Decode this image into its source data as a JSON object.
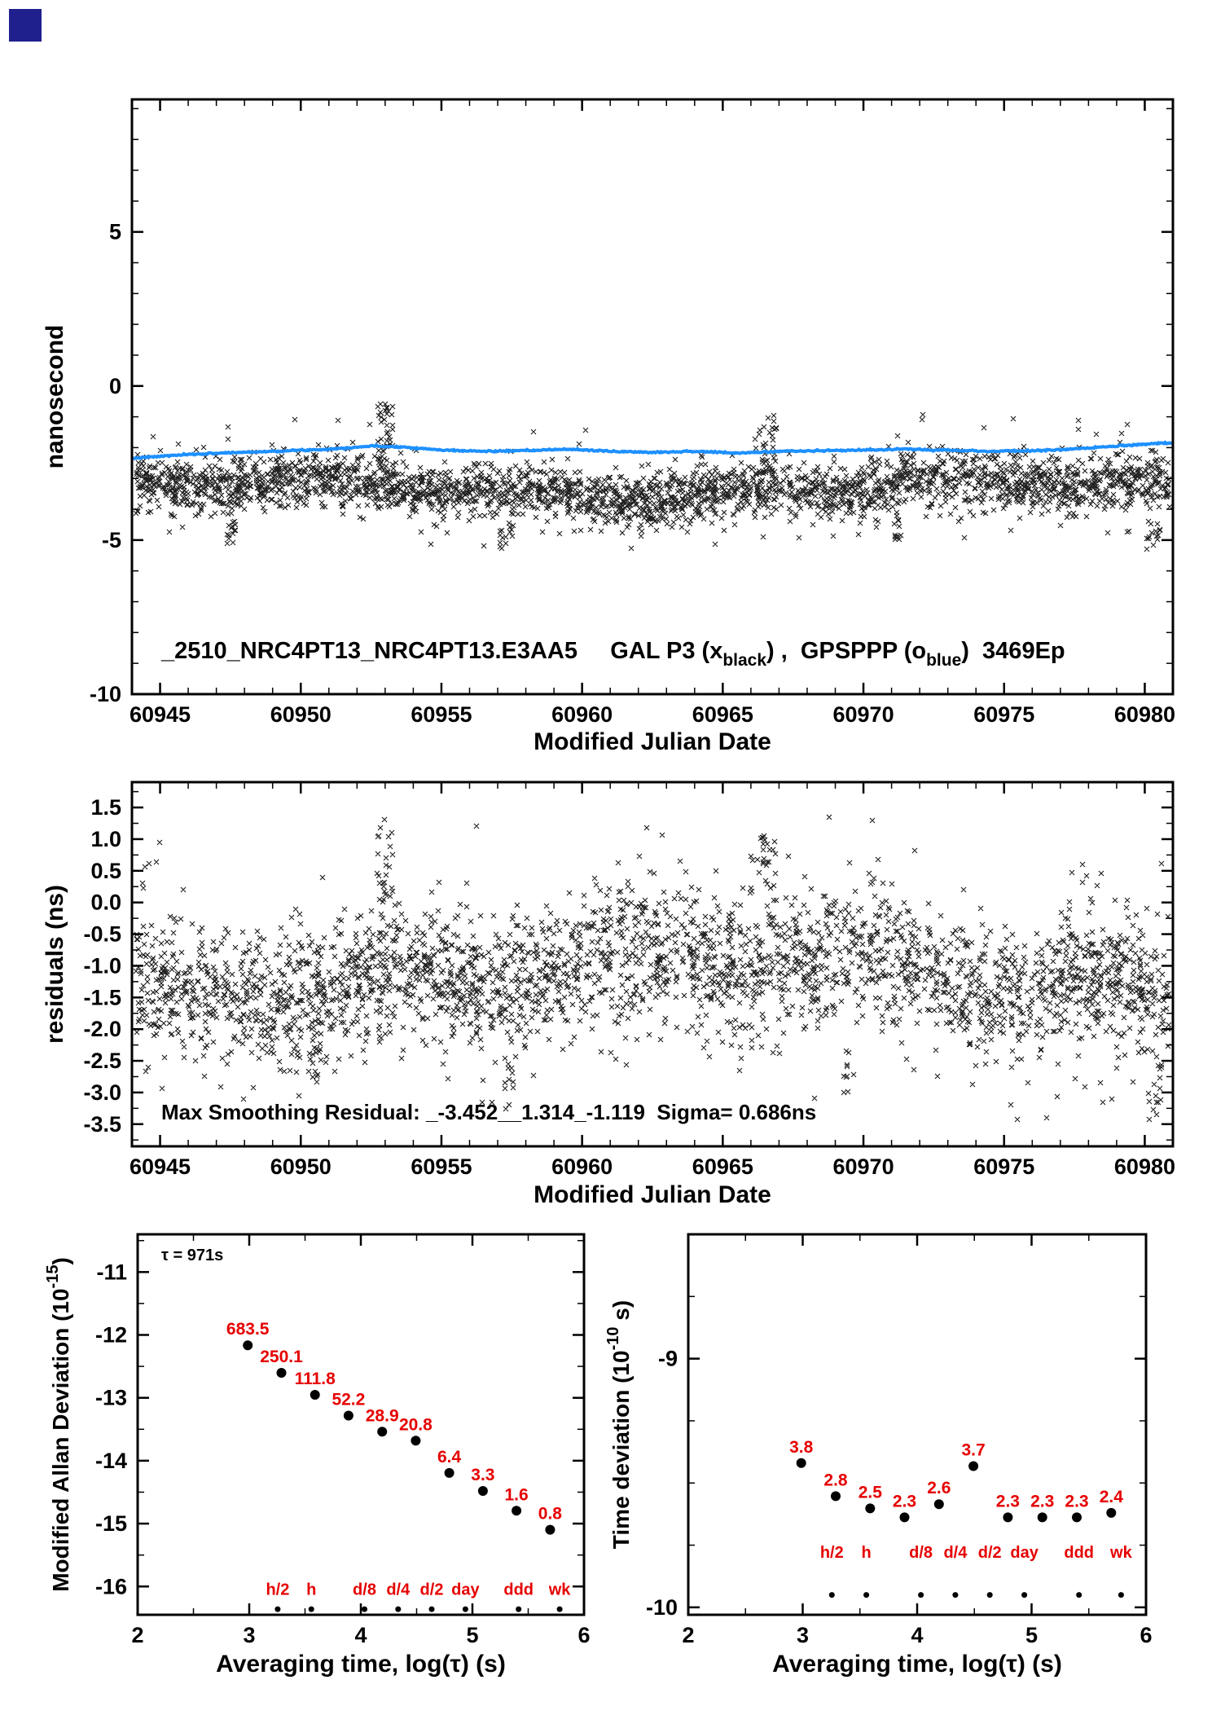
{
  "page": {
    "background": "#ffffff",
    "corner_marker_color": "#1f1f8e"
  },
  "colors": {
    "axis": "#000000",
    "scatter_black": "#000000",
    "line_blue": "#1e90ff",
    "label_red": "#e60000",
    "dot_black": "#000000"
  },
  "chart_data": [
    {
      "id": "top",
      "type": "scatter",
      "xlabel": "Modified Julian Date",
      "ylabel": "nanosecond",
      "xlim": [
        60944,
        60981
      ],
      "ylim": [
        -10,
        9.3
      ],
      "xticks": [
        60945,
        60950,
        60955,
        60960,
        60965,
        60970,
        60975,
        60980
      ],
      "xtick_labels": [
        "60945",
        "60950",
        "60955",
        "60960",
        "60965",
        "60970",
        "60975",
        "60980"
      ],
      "yticks": [
        5,
        0,
        -5,
        -10
      ],
      "ytick_labels": [
        "5",
        "0",
        "-5",
        "-10"
      ],
      "x_minor_step": 1,
      "y_minor_step": 1,
      "annotation_parts": [
        {
          "t": "_2510_NRC4PT13_NRC4PT13.E3AA5     GAL P3 (x"
        },
        {
          "t": "black",
          "sub": true
        },
        {
          "t": ") ,  GPSPPP (o"
        },
        {
          "t": "blue",
          "sub": true
        },
        {
          "t": ")  3469Ep"
        }
      ],
      "series": [
        {
          "name": "GAL P3",
          "marker": "x",
          "color": "#000000",
          "data_name": "gal-p3-scatter",
          "gen": {
            "seed": 11,
            "n": 3000,
            "base": -3.35,
            "waves": [
              {
                "amp": 0.25,
                "period": 26,
                "phase": 0.5
              },
              {
                "amp": 0.15,
                "period": 7.3,
                "phase": 2.0
              }
            ],
            "std": 0.42,
            "tail_prob": 0.1,
            "tail_std": 0.9,
            "clip": [
              -5.35,
              -0.62
            ],
            "bursts": [
              {
                "x": 60953,
                "sx": 0.3,
                "n": 40,
                "y0": -2.8,
                "y1": -0.55
              },
              {
                "x": 60966.6,
                "sx": 0.3,
                "n": 32,
                "y0": -2.8,
                "y1": -0.95
              },
              {
                "x": 60947.5,
                "sx": 0.2,
                "n": 12,
                "y0": -5.2,
                "y1": -4.4
              },
              {
                "x": 60957.3,
                "sx": 0.25,
                "n": 14,
                "y0": -5.3,
                "y1": -4.4
              },
              {
                "x": 60971.2,
                "sx": 0.2,
                "n": 10,
                "y0": -5.0,
                "y1": -4.3
              },
              {
                "x": 60980.3,
                "sx": 0.3,
                "n": 14,
                "y0": -5.3,
                "y1": -4.3
              }
            ]
          }
        },
        {
          "name": "GPSPPP",
          "marker": "o",
          "color": "#1e90ff",
          "data_name": "gpsppp-line",
          "seed": 7,
          "step": 0.04,
          "jitter": 0.013,
          "control_points": [
            [
              60944,
              -2.35
            ],
            [
              60945.5,
              -2.25
            ],
            [
              60947,
              -2.18
            ],
            [
              60949,
              -2.12
            ],
            [
              60951,
              -2.05
            ],
            [
              60952.5,
              -1.95
            ],
            [
              60953.5,
              -1.97
            ],
            [
              60955,
              -2.08
            ],
            [
              60956.5,
              -2.12
            ],
            [
              60958,
              -2.1
            ],
            [
              60959.5,
              -2.05
            ],
            [
              60961,
              -2.12
            ],
            [
              60962.5,
              -2.15
            ],
            [
              60964,
              -2.12
            ],
            [
              60965.5,
              -2.18
            ],
            [
              60967,
              -2.12
            ],
            [
              60968.5,
              -2.1
            ],
            [
              60970,
              -2.08
            ],
            [
              60971.5,
              -2.05
            ],
            [
              60973,
              -2.08
            ],
            [
              60974.5,
              -2.12
            ],
            [
              60976,
              -2.1
            ],
            [
              60977.5,
              -2.05
            ],
            [
              60979,
              -1.95
            ],
            [
              60980.2,
              -1.88
            ],
            [
              60981,
              -1.85
            ]
          ]
        }
      ]
    },
    {
      "id": "res",
      "type": "scatter",
      "xlabel": "Modified Julian Date",
      "ylabel": "residuals (ns)",
      "xlim": [
        60944,
        60981
      ],
      "ylim": [
        -3.85,
        1.9
      ],
      "xticks": [
        60945,
        60950,
        60955,
        60960,
        60965,
        60970,
        60975,
        60980
      ],
      "xtick_labels": [
        "60945",
        "60950",
        "60955",
        "60960",
        "60965",
        "60970",
        "60975",
        "60980"
      ],
      "yticks": [
        1.5,
        1,
        0.5,
        0,
        -0.5,
        -1,
        -1.5,
        -2,
        -2.5,
        -3,
        -3.5
      ],
      "ytick_labels": [
        "1.5",
        "1.0",
        "0.5",
        "0.0",
        "-0.5",
        "-1.0",
        "-1.5",
        "-2.0",
        "-2.5",
        "-3.0",
        "-3.5"
      ],
      "x_minor_step": 1,
      "y_minor_step": 0.25,
      "annotation_text": "Max Smoothing Residual: _-3.452__1.314_-1.119  Sigma= 0.686ns",
      "series": [
        {
          "name": "residuals",
          "marker": "x",
          "color": "#000000",
          "data_name": "residuals-scatter",
          "gen": {
            "seed": 23,
            "n": 3000,
            "base": -1.15,
            "waves": [
              {
                "amp": 0.3,
                "period": 30,
                "phase": 3.6
              },
              {
                "amp": 0.18,
                "period": 8.5,
                "phase": 1.2
              }
            ],
            "std": 0.52,
            "tail_prob": 0.1,
            "tail_std": 0.85,
            "clip": [
              -3.55,
              1.45
            ],
            "bursts": [
              {
                "x": 60953,
                "sx": 0.3,
                "n": 30,
                "y0": -0.3,
                "y1": 1.35
              },
              {
                "x": 60966.6,
                "sx": 0.3,
                "n": 26,
                "y0": -0.3,
                "y1": 1.05
              },
              {
                "x": 60950.5,
                "sx": 0.25,
                "n": 12,
                "y0": -3.0,
                "y1": -2.2
              },
              {
                "x": 60957.5,
                "sx": 0.25,
                "n": 12,
                "y0": -3.3,
                "y1": -2.4
              },
              {
                "x": 60969.5,
                "sx": 0.2,
                "n": 10,
                "y0": -3.1,
                "y1": -2.3
              },
              {
                "x": 60980.4,
                "sx": 0.25,
                "n": 14,
                "y0": -3.45,
                "y1": -2.3
              }
            ]
          }
        }
      ]
    },
    {
      "id": "mdev",
      "type": "scatter",
      "xlabel": "Averaging time, log(τ) (s)",
      "ylabel_parts": [
        {
          "t": "Modified Allan Deviation (10"
        },
        {
          "t": "-15",
          "sup": true
        },
        {
          "t": ")"
        }
      ],
      "xlim": [
        2,
        6
      ],
      "ylim": [
        -16.45,
        -10.4
      ],
      "xticks": [
        2,
        3,
        4,
        5,
        6
      ],
      "xtick_labels": [
        "2",
        "3",
        "4",
        "5",
        "6"
      ],
      "yticks": [
        -11,
        -12,
        -13,
        -14,
        -15,
        -16
      ],
      "ytick_labels": [
        "-11",
        "-12",
        "-13",
        "-14",
        "-15",
        "-16"
      ],
      "x_minor_step": 0.5,
      "y_minor_step": 0.5,
      "tau_annotation": "τ = 971s",
      "points": {
        "x": [
          2.987,
          3.288,
          3.589,
          3.89,
          4.191,
          4.492,
          4.793,
          5.094,
          5.395,
          5.696
        ],
        "y": [
          -12.165,
          -12.602,
          -12.952,
          -13.282,
          -13.539,
          -13.682,
          -14.194,
          -14.481,
          -14.796,
          -15.097
        ],
        "labels": [
          "683.5",
          "250.1",
          "111.8",
          "52.2",
          "28.9",
          "20.8",
          "6.4",
          "3.3",
          "1.6",
          "0.8"
        ]
      },
      "tau_marks": {
        "labels": [
          "h/2",
          "h",
          "d/8",
          "d/4",
          "d/2",
          "day",
          "ddd",
          "wk"
        ],
        "x": [
          3.255,
          3.556,
          4.033,
          4.334,
          4.635,
          4.937,
          5.414,
          5.782
        ],
        "label_y": -16.13,
        "dot_y": -16.36
      }
    },
    {
      "id": "tdev",
      "type": "scatter",
      "xlabel": "Averaging time, log(τ) (s)",
      "ylabel_parts": [
        {
          "t": "Time deviation (10"
        },
        {
          "t": "-10",
          "sup": true
        },
        {
          "t": " s)"
        }
      ],
      "xlim": [
        2,
        6
      ],
      "ylim": [
        -10.03,
        -8.5
      ],
      "xticks": [
        2,
        3,
        4,
        5,
        6
      ],
      "xtick_labels": [
        "2",
        "3",
        "4",
        "5",
        "6"
      ],
      "yticks": [
        -9,
        -10
      ],
      "ytick_labels": [
        "-9",
        "-10"
      ],
      "x_minor_step": 0.5,
      "y_minor_step": 0.25,
      "points": {
        "x": [
          2.987,
          3.288,
          3.589,
          3.89,
          4.191,
          4.492,
          4.793,
          5.094,
          5.395,
          5.696
        ],
        "y": [
          -9.42,
          -9.553,
          -9.602,
          -9.638,
          -9.585,
          -9.432,
          -9.638,
          -9.638,
          -9.638,
          -9.62
        ],
        "labels": [
          "3.8",
          "2.8",
          "2.5",
          "2.3",
          "2.6",
          "3.7",
          "2.3",
          "2.3",
          "2.3",
          "2.4"
        ]
      },
      "tau_marks": {
        "labels": [
          "h/2",
          "h",
          "d/8",
          "d/4",
          "d/2",
          "day",
          "ddd",
          "wk"
        ],
        "x": [
          3.255,
          3.556,
          4.033,
          4.334,
          4.635,
          4.937,
          5.414,
          5.782
        ],
        "label_y": -9.8,
        "dot_y": -9.95
      }
    }
  ]
}
